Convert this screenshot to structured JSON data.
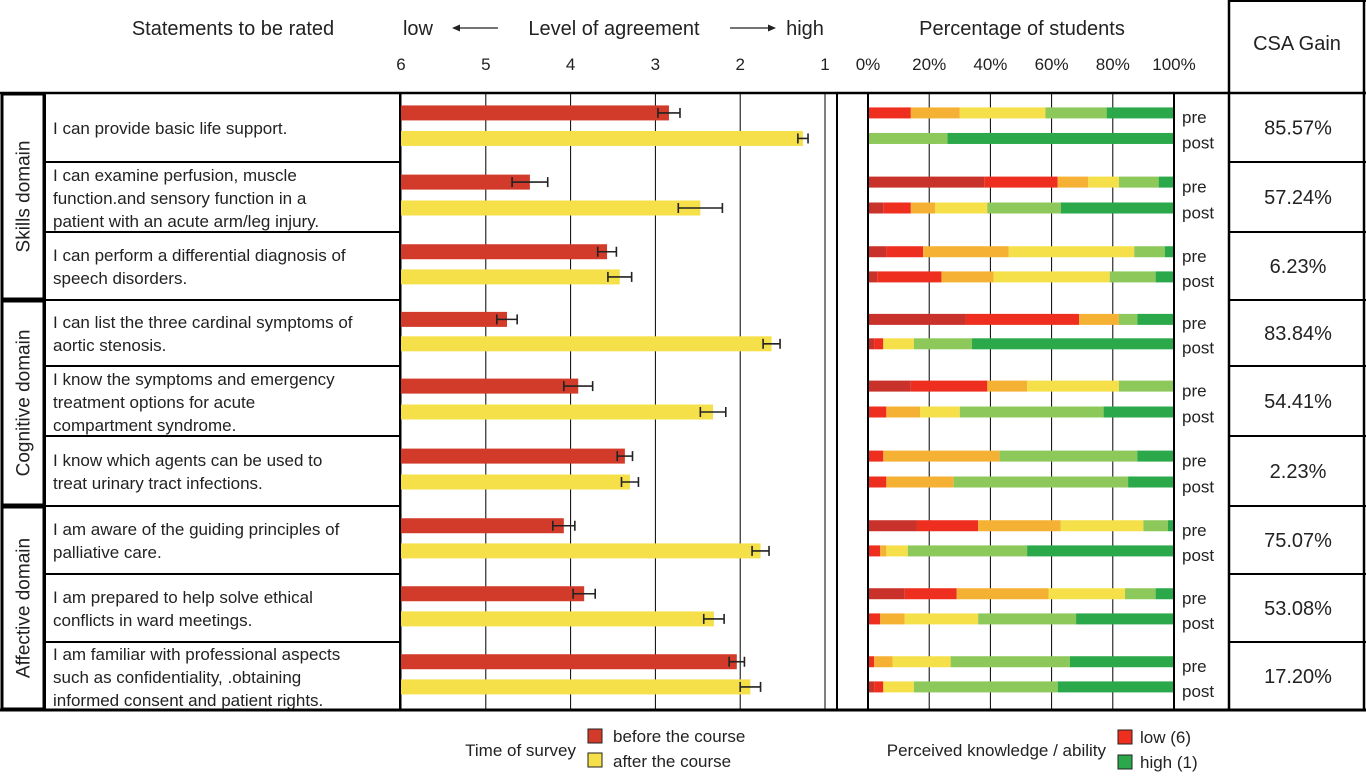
{
  "headers": {
    "statements": "Statements to be rated",
    "low": "low",
    "level": "Level of agreement",
    "high": "high",
    "percentage": "Percentage of students",
    "csa": "CSA Gain"
  },
  "axis_left_ticks": [
    "6",
    "5",
    "4",
    "3",
    "2",
    "1"
  ],
  "axis_right_ticks": [
    "0%",
    "20%",
    "40%",
    "60%",
    "80%",
    "100%"
  ],
  "domains": [
    "Skills domain",
    "Cognitive domain",
    "Affective domain"
  ],
  "pre_label": "pre",
  "post_label": "post",
  "rows": [
    {
      "lines": [
        "I can provide basic life support."
      ],
      "gain": "85.57%"
    },
    {
      "lines": [
        "I can examine perfusion, muscle",
        "function.and sensory function in a",
        "patient with an acute arm/leg injury."
      ],
      "gain": "57.24%"
    },
    {
      "lines": [
        "I can perform a differential diagnosis of",
        "speech disorders."
      ],
      "gain": "6.23%"
    },
    {
      "lines": [
        "I can list the three cardinal symptoms of",
        "aortic stenosis."
      ],
      "gain": "83.84%"
    },
    {
      "lines": [
        "I know the symptoms and emergency",
        "treatment options for acute",
        "compartment syndrome."
      ],
      "gain": "54.41%"
    },
    {
      "lines": [
        "I know which agents can be used to",
        "treat urinary tract infections."
      ],
      "gain": "2.23%"
    },
    {
      "lines": [
        "I am aware of the guiding principles of",
        "palliative care."
      ],
      "gain": "75.07%"
    },
    {
      "lines": [
        "I am prepared to help solve ethical",
        "conflicts in ward meetings."
      ],
      "gain": "53.08%"
    },
    {
      "lines": [
        "I am familiar with professional aspects",
        "such as confidentiality, .obtaining",
        "informed consent and patient rights."
      ],
      "gain": "17.20%"
    }
  ],
  "legend": {
    "time_title": "Time of survey",
    "before": "before the course",
    "after": "after the course",
    "perceived_title": "Perceived knowledge / ability",
    "low": "low (6)",
    "high": "high (1)"
  },
  "colors": {
    "before": "#d23a2a",
    "after": "#f5e04a",
    "scale": [
      "#c8322a",
      "#ee2f1f",
      "#f5b133",
      "#f5e04a",
      "#8cc85a",
      "#2aa84a"
    ]
  },
  "chart_data": [
    {
      "type": "bar",
      "title": "Level of agreement",
      "xlim": [
        6,
        1
      ],
      "categories": [
        "I can provide basic life support.",
        "I can examine perfusion, muscle function.and sensory function in a patient with an acute arm/leg injury.",
        "I can perform a differential diagnosis of speech disorders.",
        "I can list the three cardinal symptoms of aortic stenosis.",
        "I know the symptoms and emergency treatment options for acute compartment syndrome.",
        "I know which agents can be used to treat urinary tract infections.",
        "I am aware of the guiding principles of palliative care.",
        "I am prepared to help solve ethical conflicts in ward meetings.",
        "I am familiar with professional aspects such as confidentiality, .obtaining informed consent and patient rights."
      ],
      "series": [
        {
          "name": "before the course",
          "values": [
            2.84,
            4.48,
            3.57,
            4.75,
            3.91,
            3.36,
            4.08,
            3.84,
            2.04
          ],
          "errors": [
            0.13,
            0.21,
            0.11,
            0.12,
            0.17,
            0.09,
            0.13,
            0.13,
            0.09
          ]
        },
        {
          "name": "after the course",
          "values": [
            1.26,
            2.47,
            3.42,
            1.63,
            2.32,
            3.3,
            1.76,
            2.31,
            1.88
          ],
          "errors": [
            0.06,
            0.26,
            0.14,
            0.1,
            0.15,
            0.1,
            0.1,
            0.12,
            0.12
          ]
        }
      ]
    },
    {
      "type": "bar",
      "title": "Percentage of students",
      "stacked": true,
      "xlim": [
        0,
        100
      ],
      "levels": [
        "6",
        "5",
        "4",
        "3",
        "2",
        "1"
      ],
      "categories": [
        "pre",
        "post"
      ],
      "rows": [
        {
          "pre": [
            0,
            14,
            16,
            28,
            20,
            22
          ],
          "post": [
            0,
            0,
            0,
            0,
            26,
            74
          ]
        },
        {
          "pre": [
            38,
            24,
            10,
            10,
            13,
            5
          ],
          "post": [
            5,
            9,
            8,
            17,
            24,
            37
          ]
        },
        {
          "pre": [
            6,
            12,
            28,
            41,
            10,
            3
          ],
          "post": [
            3,
            21,
            17,
            38,
            15,
            6
          ]
        },
        {
          "pre": [
            32,
            37,
            13,
            0,
            6,
            12
          ],
          "post": [
            2,
            3,
            0,
            10,
            19,
            66
          ]
        },
        {
          "pre": [
            14,
            25,
            13,
            30,
            18,
            0
          ],
          "post": [
            0,
            6,
            11,
            13,
            47,
            23
          ]
        },
        {
          "pre": [
            0,
            5,
            38,
            0,
            45,
            12
          ],
          "post": [
            0,
            6,
            22,
            0,
            57,
            15
          ]
        },
        {
          "pre": [
            16,
            20,
            27,
            27,
            8,
            2
          ],
          "post": [
            0,
            4,
            2,
            7,
            39,
            48
          ]
        },
        {
          "pre": [
            12,
            17,
            30,
            25,
            10,
            6
          ],
          "post": [
            0,
            4,
            8,
            24,
            32,
            32
          ]
        },
        {
          "pre": [
            0,
            2,
            6,
            19,
            39,
            34
          ],
          "post": [
            2,
            3,
            0,
            10,
            47,
            38
          ]
        }
      ]
    }
  ]
}
